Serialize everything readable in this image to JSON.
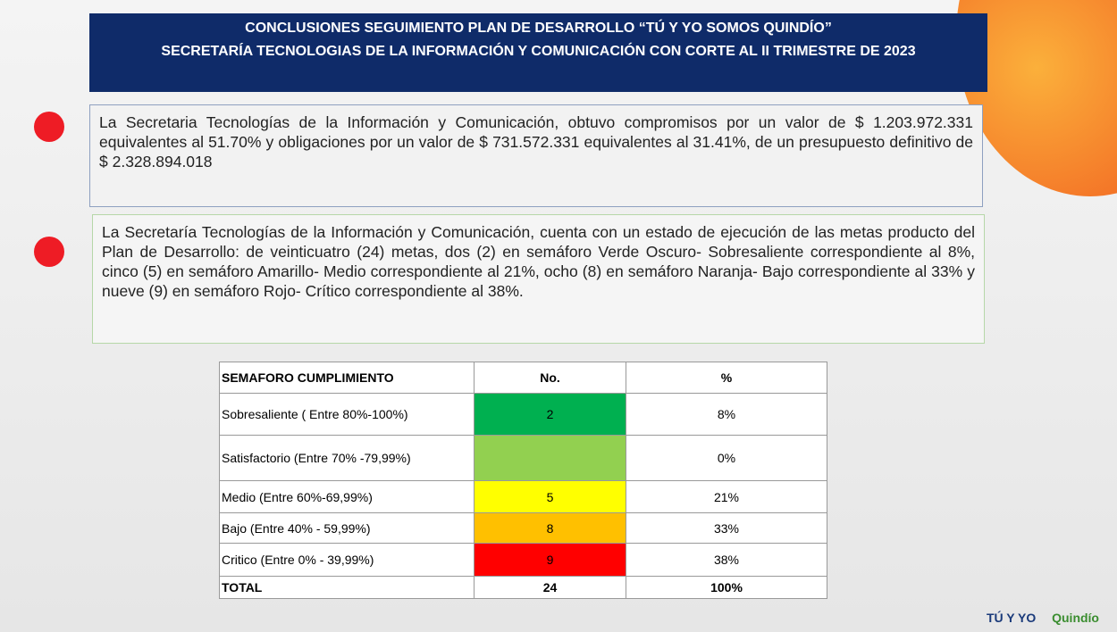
{
  "header": {
    "title_lines": [
      "CONCLUSIONES SEGUIMIENTO PLAN DE DESARROLLO “TÚ Y YO SOMOS QUINDÍO”",
      "SECRETARÍA TECNOLOGIAS DE LA INFORMACIÓN Y COMUNICACIÓN  CON CORTE AL II TRIMESTRE DE 2023"
    ]
  },
  "paragraphs": [
    "La Secretaria Tecnologías de la Información y Comunicación, obtuvo compromisos por un valor de $ 1.203.972.331 equivalentes al 51.70% y obligaciones por un valor de $ 731.572.331 equivalentes al 31.41%, de un presupuesto definitivo de $ 2.328.894.018",
    "La Secretaría Tecnologías de la Información y Comunicación, cuenta con un estado de ejecución de las metas producto del Plan de Desarrollo: de veinticuatro (24) metas, dos (2) en semáforo Verde Oscuro- Sobresaliente correspondiente al 8%,  cinco (5) en semáforo Amarillo- Medio correspondiente al 21%, ocho (8) en semáforo Naranja- Bajo correspondiente al 33% y nueve (9) en semáforo Rojo- Crítico correspondiente al 38%."
  ],
  "table": {
    "columns": [
      "SEMAFORO CUMPLIMIENTO",
      "No.",
      "%"
    ],
    "rows": [
      {
        "label": "Sobresaliente  ( Entre 80%-100%)",
        "no": "2",
        "pct": "8%",
        "color": "#00b050"
      },
      {
        "label": "Satisfactorio (Entre 70% -79,99%)",
        "pct": "0%",
        "color": "#92d050"
      },
      {
        "label": "Medio (Entre 60%-69,99%)",
        "no": "5",
        "pct": "21%",
        "color": "#ffff00"
      },
      {
        "label": "Bajo (Entre 40% - 59,99%)",
        "no": "8",
        "pct": "33%",
        "color": "#ffc000"
      },
      {
        "label": "Critico (Entre 0% - 39,99%)",
        "no": "9",
        "pct": "38%",
        "color": "#ff0000"
      }
    ],
    "total": [
      "TOTAL",
      "24",
      "100%"
    ]
  },
  "footer": {
    "logos": [
      "TÚ Y YO",
      "Quindío"
    ]
  }
}
